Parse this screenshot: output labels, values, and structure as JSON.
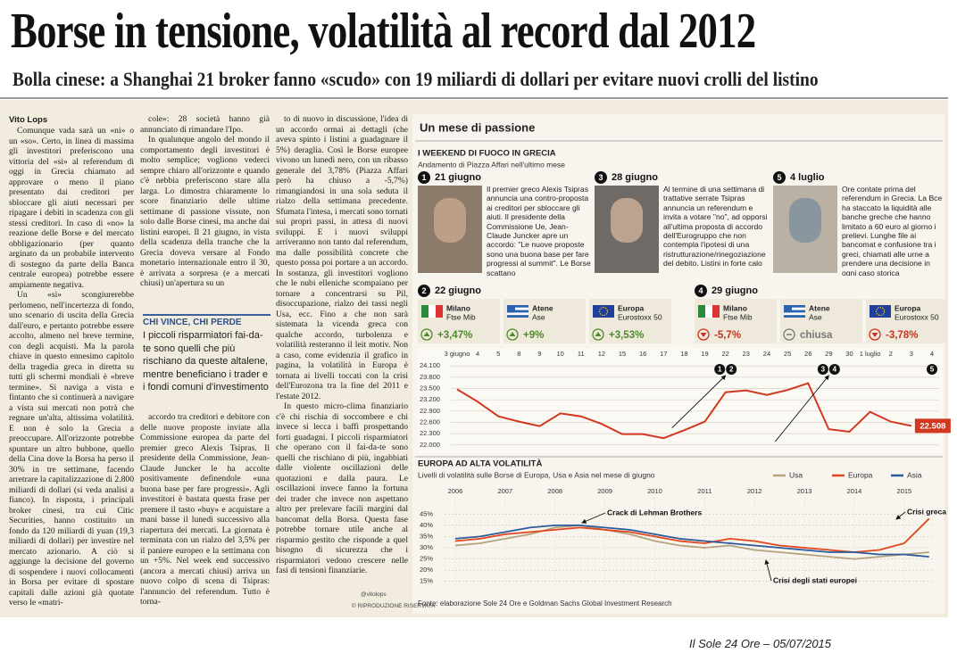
{
  "header": {
    "title": "Borse in tensione, volatilità al record dal 2012",
    "subtitle": "Bolla cinese: a Shanghai 21 broker fanno «scudo» con 19 miliardi di dollari per evitare nuovi crolli del listino"
  },
  "article": {
    "author": "Vito Lops",
    "columns": [
      {
        "paragraphs": [
          "Comunque vada sarà un «ni» o un «so». Certo, in linea di massima gli investitori preferiscono una vittoria del «sì» al referendum di oggi in Grecia chiamato ad approvare o meno il piano presentato dai creditori per sbloccare gli aiuti necessari per ripagare i debiti in scadenza con gli stessi creditori. In caso di «no» la reazione delle Borse e del mercato obbligazionario (per quanto arginato da un probabile intervento di sostegno da parte della Banca centrale europea) potrebbe essere ampiamente negativa.",
          "Un «sì» scongiurerebbe perlomeno, nell'incertezza di fondo, uno scenario di uscita della Grecia dall'euro, e pertanto potrebbe essere accolto, almeno nel breve termine, con degli acquisti. Ma la parola chiave in questo ennesimo capitolo della tragedia greca in diretta su tutti gli schermi mondiali è «breve termine». Si naviga a vista e fintanto che si continuerà a navigare a vista sui mercati non potrà che regnare un'alta, altissima volatilità. E non è solo la Grecia a preoccupare. All'orizzonte potrebbe spuntare un altro bubbone, quello della Cina dove la Borsa ha perso il 30% in tre settimane, facendo arretrare la capitalizzazione di 2.800 miliardi di dollari (si veda analisi a fianco). In risposta, i principali broker cinesi, tra cui Citic Securities, hanno costituito un fondo da 120 miliardi di yuan (19,3 miliardi di dollari) per investire nel mercato azionario. A ciò si aggiunge la decisione del governo di sospendere i nuovi collocamenti in Borsa per evitare di spostare capitali dalle azioni già quotate verso le «matri-"
        ]
      },
      {
        "paragraphs": [
          "cole»: 28 società hanno già annunciato di rimandare l'Ipo.",
          "In qualunque angolo del mondo il comportamento degli investitori è molto semplice; vogliono vederci sempre chiaro all'orizzonte e quando c'è nebbia preferiscono stare alla larga. Lo dimostra chiaramente lo score finanziario delle ultime settimane di passione vissute, non solo dalle Borse cinesi, ma anche dai listini europei. Il 21 giugno, in vista della scadenza della tranche che la Grecia doveva versare al Fondo monetario internazionale entro il 30, è arrivata a sorpresa (e a mercati chiusi) un'apertura su un"
        ]
      },
      {
        "paragraphs": [
          "accordo tra creditori e debitore con delle nuove proposte inviate alla Commissione europea da parte del premier greco Alexis Tsipras. Il presidente della Commissione, Jean-Claude Juncker le ha accolte positivamente definendole «una buona base per fare progressi». Agli investitori è bastata questa frase per premere il tasto «buy» e acquistare a mani basse il lunedì successivo alla riapertura dei mercati. La giornata è terminata con un rialzo del 3,5% per il paniere europeo e la settimana con un +5%. Nel week end successivo (ancora a mercati chiusi) arriva un nuovo colpo di scena di Tsipras: l'annuncio del referendum. Tutto è torna-"
        ]
      },
      {
        "paragraphs": [
          "to di nuovo in discussione, l'idea di un accordo ormai ai dettagli (che aveva spinto i listini a guadagnare il 5%) deraglia. Così le Borse europee vivono un lunedì nero, con un ribasso generale del 3,78% (Piazza Affari però ha chiuso a -5,7%) rimangiandosi in una sola seduta il rialzo della settimana precedente. Sfumata l'intesa, i mercati sono tornati sui propri passi, in attesa di nuovi sviluppi. E i nuovi sviluppi arriveranno non tanto dal referendum, ma dalle possibilità concrete che questo possa poi portare a un accordo. In sostanza, gli investitori vogliono che le nubi elleniche scompaiano per tornare a concentrarsi su Pil, disoccupazione, rialzo dei tassi negli Usa, ecc. Fino a che non sarà sistemata la vicenda greca con qualche accordo, turbolenza e volatilità resteranno il leit motiv. Non a caso, come evidenzia il grafico in pagina, la volatilità in Europa è tornata ai livelli toccati con la crisi dell'Eurozona tra la fine del 2011 e l'estate 2012.",
          "In questo micro-clima finanziario c'è chi rischia di soccombere e chi invece si lecca i baffi prospettando forti guadagni. I piccoli risparmiatori che operano con il fai-da-te sono quelli che rischiano di più, ingabbiati dalle violente oscillazioni delle quotazioni e dalla paura. Le oscillazioni invece fanno la fortuna dei trader che invece non aspettano altro per prelevare facili margini dal bancomat della Borsa. Questa fase potrebbe tornare utile anche al risparmio gestito che risponde a quel bisogno di sicurezza che i risparmiatori vedono crescere nelle fasi di tensioni finanziarie."
        ]
      }
    ],
    "box": {
      "title": "CHI VINCE, CHI PERDE",
      "text": "I piccoli risparmiatori fai-da-te sono quelli che più rischiano da queste altalene, mentre beneficiano i trader e i fondi comuni d'investimento"
    },
    "twitter": "@vitolops",
    "rights": "© RIPRODUZIONE RISERVATA"
  },
  "infographic": {
    "title": "Un mese di passione",
    "section1": {
      "title": "I WEEKEND DI FUOCO IN GRECIA",
      "subtitle": "Andamento di Piazza Affari nell'ultimo mese"
    },
    "events": [
      {
        "number": "1",
        "date": "21 giugno",
        "text": "Il premier greco Alexis Tsipras annuncia una contro-proposta ai creditori per sbloccare gli aiuti. Il presidente della Commissione Ue, Jean-Claude Juncker apre un accordo: \"Le nuove proposte sono una buona base per fare progressi al summit\". Le Borse scattano"
      },
      {
        "number": "3",
        "date": "28 giugno",
        "text": "Al termine di una settimana di trattative serrate Tsipras annuncia un referendum e invita a votare \"no\", ad opporsi all'ultima proposta di accordo dell'Eurogruppo che non contempla l'ipotesi di una ristrutturazione/rinegoziazione del debito. Listini in forte calo"
      },
      {
        "number": "5",
        "date": "4 luglio",
        "text": "Ore contate prima del referendum in Grecia. La Bce ha staccato la liquidità alle banche greche che hanno limitato a 60 euro al giorno i prelievi. Lunghe file ai bancomat e confusione tra i greci, chiamati alle urne a prendere una decisione in ogni caso storica"
      }
    ],
    "markets": [
      {
        "number": "2",
        "date": "22 giugno",
        "items": [
          {
            "city": "Milano",
            "index": "Ftse Mib",
            "change": "+3,47%"
          },
          {
            "city": "Atene",
            "index": "Ase",
            "change": "+9%"
          },
          {
            "city": "Europa",
            "index": "Eurostoxx 50",
            "change": "+3,53%"
          }
        ]
      },
      {
        "number": "4",
        "date": "29 giugno",
        "items": [
          {
            "city": "Milano",
            "index": "Ftse Mib",
            "change": "-5,7%"
          },
          {
            "city": "Atene",
            "index": "Ase",
            "change": "chiusa"
          },
          {
            "city": "Europa",
            "index": "Eurostoxx 50",
            "change": "-3,78%"
          }
        ]
      }
    ],
    "section2": {
      "title": "EUROPA AD ALTA VOLATILITÀ",
      "subtitle": "Livelli di volatilità sulle Borse di Europa, Usa e Asia nel mese di giugno"
    },
    "source": "Fonte: elaborazione Sole 24 Ore e Goldman Sachs Global Investment Research"
  },
  "chart_data": [
    {
      "type": "line",
      "categories": [
        "3 giugno",
        "4",
        "5",
        "8",
        "9",
        "10",
        "11",
        "12",
        "15",
        "16",
        "17",
        "18",
        "19",
        "22",
        "23",
        "24",
        "25",
        "26",
        "29",
        "30",
        "1 luglio",
        "2",
        "3",
        "4"
      ],
      "values": [
        23480,
        23150,
        22760,
        22620,
        22500,
        22840,
        22760,
        22560,
        22290,
        22290,
        22180,
        22390,
        22620,
        23400,
        23450,
        23330,
        23460,
        23640,
        22420,
        22350,
        22880,
        22620,
        22508,
        null
      ],
      "value_labels": [
        null,
        null,
        null,
        null,
        null,
        null,
        null,
        null,
        null,
        null,
        null,
        null,
        null,
        null,
        null,
        null,
        null,
        null,
        null,
        null,
        null,
        null,
        "22.508",
        null
      ],
      "color": "#d2381f",
      "ylim": [
        21900,
        24200
      ],
      "yticks": [
        {
          "value": 24100,
          "label": "24.100"
        },
        {
          "value": 23800,
          "label": "23.800"
        },
        {
          "value": 23500,
          "label": "23.500"
        },
        {
          "value": 23200,
          "label": "23.200"
        },
        {
          "value": 22900,
          "label": "22.900"
        },
        {
          "value": 22600,
          "label": "22.600"
        },
        {
          "value": 22300,
          "label": "22.300"
        },
        {
          "value": 22000,
          "label": "22.000"
        }
      ],
      "grid": true,
      "markers": [
        {
          "at": "22",
          "labels": [
            "1",
            "2"
          ]
        },
        {
          "at": "29",
          "labels": [
            "3",
            "4"
          ]
        },
        {
          "at": "4",
          "labels": [
            "5"
          ]
        }
      ]
    },
    {
      "type": "line",
      "x": [
        2006,
        2006.5,
        2007,
        2007.5,
        2008,
        2008.5,
        2009,
        2009.5,
        2010,
        2010.5,
        2011,
        2011.5,
        2012,
        2012.5,
        2013,
        2013.5,
        2014,
        2014.5,
        2015,
        2015.5
      ],
      "series": [
        {
          "name": "Usa",
          "color": "#b5a27e",
          "values": [
            31,
            32,
            34,
            36,
            39,
            40,
            38,
            36,
            33,
            31,
            30,
            31,
            29,
            28,
            27,
            26,
            25,
            26,
            27,
            28
          ]
        },
        {
          "name": "Europa",
          "color": "#e2461c",
          "values": [
            33,
            34,
            36,
            37,
            38,
            39,
            38,
            37,
            35,
            33,
            32,
            34,
            33,
            31,
            30,
            29,
            28,
            29,
            32,
            43
          ]
        },
        {
          "name": "Asia",
          "color": "#2b5b9b",
          "values": [
            34,
            35,
            37,
            39,
            40,
            40,
            39,
            38,
            36,
            34,
            33,
            32,
            31,
            30,
            29,
            28,
            28,
            27,
            27,
            26
          ]
        }
      ],
      "xlim": [
        2005.5,
        2015.7
      ],
      "xticks": [
        2006,
        2007,
        2008,
        2009,
        2010,
        2011,
        2012,
        2013,
        2014,
        2015
      ],
      "ylim": [
        12.5,
        47.5
      ],
      "yticks": [
        {
          "value": 45,
          "label": "45%"
        },
        {
          "value": 40,
          "label": "40%"
        },
        {
          "value": 35,
          "label": "35%"
        },
        {
          "value": 30,
          "label": "30%"
        },
        {
          "value": 25,
          "label": "25%"
        },
        {
          "value": 20,
          "label": "20%"
        },
        {
          "value": 15,
          "label": "15%"
        }
      ],
      "grid": true,
      "legend": "top-right",
      "annotations": [
        "Crack di Lehman Brothers",
        "Crisi greca",
        "Crisi degli stati europei"
      ]
    }
  ],
  "footer": "Il Sole 24 Ore – 05/07/2015"
}
